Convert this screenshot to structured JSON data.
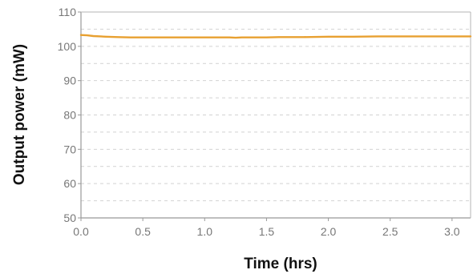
{
  "chart_data": {
    "type": "line",
    "title": "",
    "xlabel": "Time (hrs)",
    "ylabel": "Output power (mW)",
    "xlim": [
      0.0,
      3.15
    ],
    "ylim": [
      50,
      110
    ],
    "x_ticks": [
      "0.0",
      "0.5",
      "1.0",
      "1.5",
      "2.0",
      "2.5",
      "3.0"
    ],
    "y_ticks": [
      "50",
      "60",
      "70",
      "80",
      "90",
      "100",
      "110"
    ],
    "grid": "horizontal dashed at every 5 mW",
    "series": [
      {
        "color": "#E8A030",
        "x": [
          0.0,
          0.05,
          0.1,
          0.2,
          0.3,
          0.4,
          0.5,
          0.6,
          0.7,
          0.8,
          0.9,
          1.0,
          1.1,
          1.2,
          1.25,
          1.3,
          1.4,
          1.5,
          1.6,
          1.8,
          2.0,
          2.2,
          2.4,
          2.6,
          2.8,
          3.0,
          3.15
        ],
        "y": [
          103.3,
          103.2,
          103.0,
          102.8,
          102.7,
          102.6,
          102.6,
          102.6,
          102.6,
          102.6,
          102.6,
          102.6,
          102.6,
          102.6,
          102.5,
          102.6,
          102.6,
          102.6,
          102.7,
          102.7,
          102.8,
          102.8,
          102.9,
          102.9,
          102.9,
          102.9,
          102.9
        ]
      }
    ]
  }
}
